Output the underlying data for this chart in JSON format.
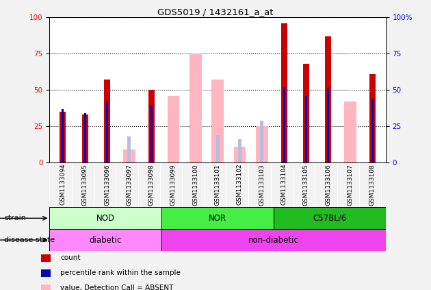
{
  "title": "GDS5019 / 1432161_a_at",
  "samples": [
    "GSM1133094",
    "GSM1133095",
    "GSM1133096",
    "GSM1133097",
    "GSM1133098",
    "GSM1133099",
    "GSM1133100",
    "GSM1133101",
    "GSM1133102",
    "GSM1133103",
    "GSM1133104",
    "GSM1133105",
    "GSM1133106",
    "GSM1133107",
    "GSM1133108"
  ],
  "count_values": [
    35,
    33,
    57,
    null,
    50,
    null,
    null,
    null,
    null,
    null,
    96,
    68,
    87,
    null,
    61
  ],
  "percentile_values": [
    37,
    34,
    42,
    null,
    39,
    null,
    null,
    null,
    null,
    null,
    52,
    46,
    51,
    null,
    44
  ],
  "absent_value": [
    null,
    null,
    null,
    9,
    null,
    46,
    75,
    57,
    11,
    25,
    null,
    null,
    null,
    42,
    null
  ],
  "absent_rank": [
    null,
    null,
    null,
    18,
    null,
    null,
    null,
    19,
    16,
    29,
    null,
    null,
    null,
    null,
    null
  ],
  "strain_groups": [
    {
      "label": "NOD",
      "start": 0,
      "end": 5,
      "color": "#CCFFCC"
    },
    {
      "label": "NOR",
      "start": 5,
      "end": 10,
      "color": "#44EE44"
    },
    {
      "label": "C57BL/6",
      "start": 10,
      "end": 15,
      "color": "#22BB22"
    }
  ],
  "disease_groups": [
    {
      "label": "diabetic",
      "start": 0,
      "end": 5,
      "color": "#FF88FF"
    },
    {
      "label": "non-diabetic",
      "start": 5,
      "end": 15,
      "color": "#EE44EE"
    }
  ],
  "count_color": "#CC0000",
  "percentile_color": "#0000BB",
  "absent_value_color": "#FFB6C1",
  "absent_rank_color": "#BBBBDD",
  "plot_bg": "#FFFFFF",
  "tick_area_bg": "#CCCCCC",
  "fig_bg": "#F2F2F2"
}
